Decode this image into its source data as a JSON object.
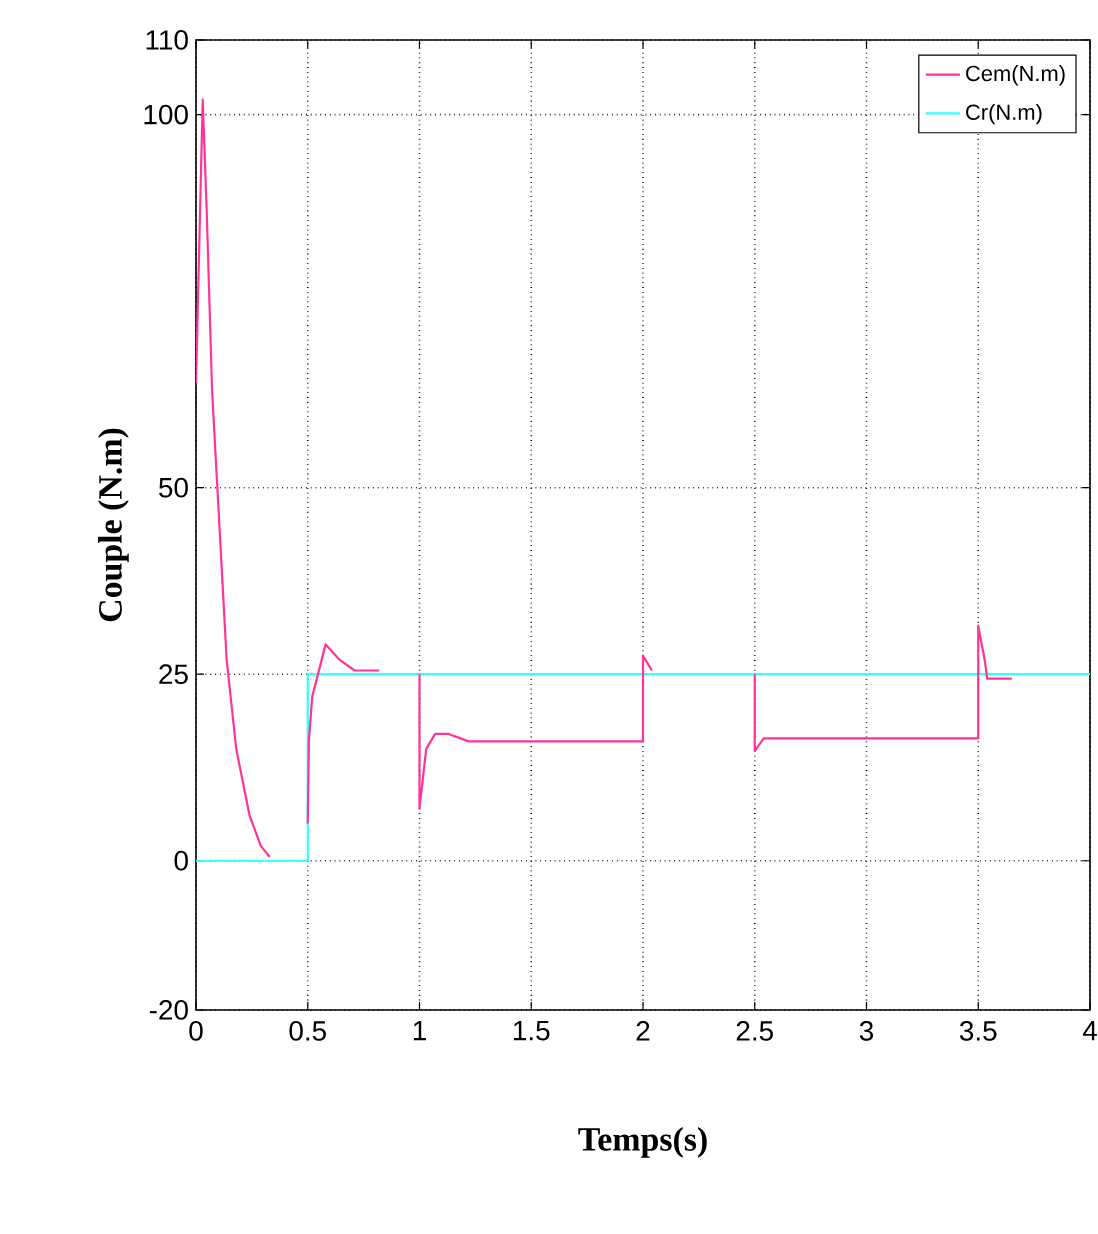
{
  "chart_data": {
    "type": "line",
    "xlabel": "Temps(s)",
    "ylabel": "Couple (N.m)",
    "xlim": [
      0,
      4
    ],
    "xticks": [
      0,
      0.5,
      1,
      1.5,
      2,
      2.5,
      3,
      3.5,
      4
    ],
    "ylim": [
      -20,
      110
    ],
    "yticks": [
      -20,
      0,
      25,
      50,
      100,
      110
    ],
    "grid": true,
    "legend": "top right",
    "line_style": "solid",
    "series": [
      {
        "name": "Cem(N.m)",
        "color": "#ff3399",
        "x": [
          0,
          0.03,
          0.048,
          0.072,
          0.11,
          0.137,
          0.18,
          0.24,
          0.29,
          0.33,
          0.4,
          0.5,
          0.505,
          0.52,
          0.58,
          0.64,
          0.71,
          0.82,
          0.9,
          1,
          1,
          1.03,
          1.07,
          1.13,
          1.22,
          2,
          2,
          2.04,
          2.2,
          2.5,
          2.5,
          2.54,
          3.5,
          3.5,
          3.53,
          3.54,
          3.65
        ],
        "values": [
          64,
          102,
          87,
          63,
          42,
          27,
          15,
          6,
          2,
          0.5,
          null,
          5,
          16,
          22,
          29,
          27,
          25.5,
          25.5,
          null,
          25,
          7,
          15,
          17,
          17,
          16,
          16,
          27.5,
          25.5,
          null,
          25,
          14.7,
          16.4,
          16.4,
          31.5,
          26.7,
          24.4,
          24.4
        ]
      },
      {
        "name": "Cr(N.m)",
        "color": "#33ffff",
        "x": [
          0,
          0.5,
          0.5,
          4
        ],
        "values": [
          0,
          0,
          25,
          25
        ]
      }
    ]
  }
}
